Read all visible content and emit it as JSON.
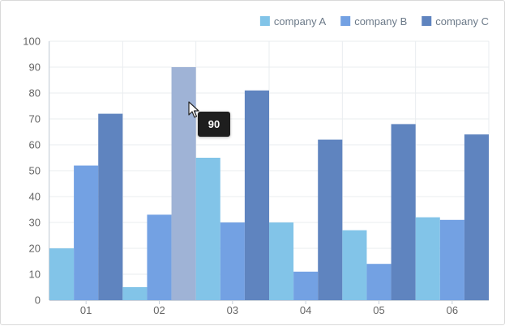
{
  "chart_data": {
    "type": "bar",
    "categories": [
      "01",
      "02",
      "03",
      "04",
      "05",
      "06"
    ],
    "series": [
      {
        "name": "company A",
        "color": "#82c4e8",
        "values": [
          20,
          5,
          55,
          30,
          27,
          32
        ]
      },
      {
        "name": "company B",
        "color": "#73a1e3",
        "values": [
          52,
          33,
          30,
          11,
          14,
          31
        ]
      },
      {
        "name": "company C",
        "color": "#5f84bf",
        "values": [
          72,
          90,
          81,
          62,
          68,
          64
        ]
      }
    ],
    "ylim": [
      0,
      100
    ],
    "yticks": [
      0,
      10,
      20,
      30,
      40,
      50,
      60,
      70,
      80,
      90,
      100
    ],
    "grid": true,
    "legend_position": "top-right",
    "highlight": {
      "series_index": 2,
      "category_index": 1,
      "color": "#9fb3d6"
    },
    "tooltip": {
      "text": "90"
    }
  }
}
